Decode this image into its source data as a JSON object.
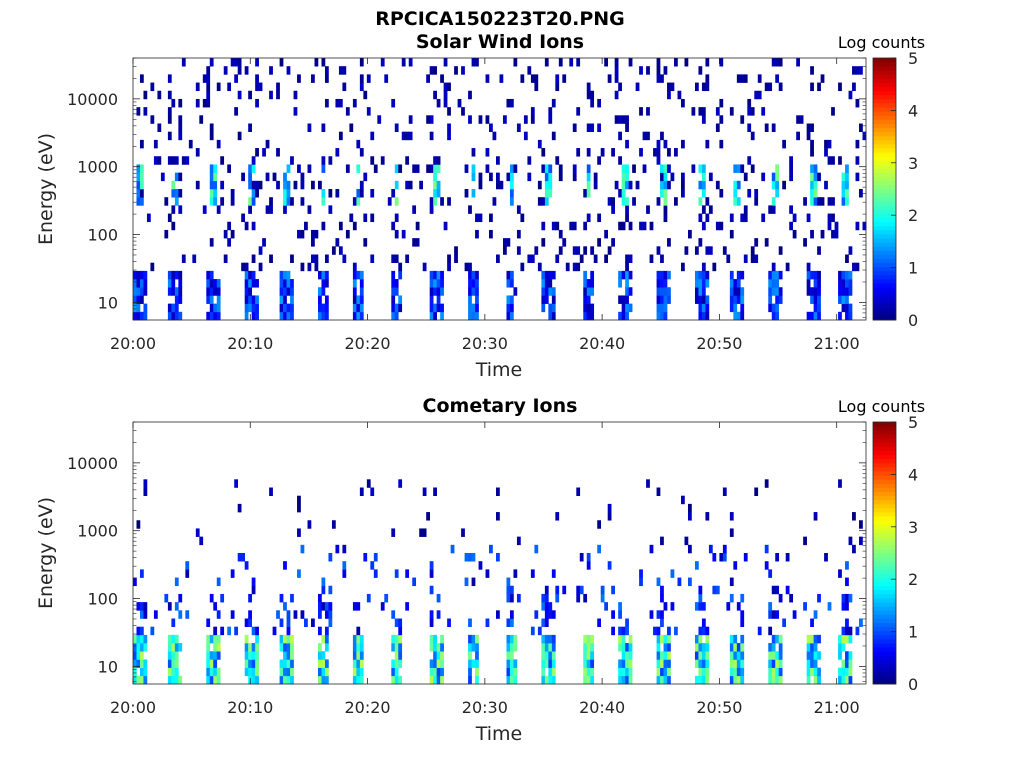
{
  "figure": {
    "file_title": "RPCICA150223T20.PNG",
    "background": "#ffffff"
  },
  "chart_data": [
    {
      "type": "heatmap",
      "title": "Solar Wind Ions",
      "xlabel": "Time",
      "ylabel": "Energy (eV)",
      "x_ticks": [
        "20:00",
        "20:10",
        "20:20",
        "20:30",
        "20:40",
        "20:50",
        "21:00"
      ],
      "x_tick_minutes": [
        0,
        10,
        20,
        30,
        40,
        50,
        60
      ],
      "xlim_minutes": [
        0,
        62.5
      ],
      "y_ticks": [
        "10",
        "100",
        "1000",
        "10000"
      ],
      "y_tick_values": [
        10,
        100,
        1000,
        10000
      ],
      "ylim": [
        5.5,
        40000
      ],
      "yscale": "log",
      "colorbar": {
        "title": "Log counts",
        "ticks": [
          "0",
          "1",
          "2",
          "3",
          "4",
          "5"
        ],
        "range": [
          0,
          5
        ],
        "colormap": "jet"
      },
      "pulse_minutes": [
        0.5,
        3.5,
        6.8,
        10.1,
        13.0,
        16.2,
        19.2,
        22.5,
        25.8,
        29.0,
        32.3,
        35.5,
        38.8,
        42.0,
        45.2,
        48.5,
        51.5,
        54.7,
        58.0,
        60.8
      ],
      "features": [
        {
          "name": "low-energy band",
          "energy_range_eV": [
            5.5,
            28
          ],
          "log_counts": [
            0.3,
            1.3
          ]
        },
        {
          "name": "solar wind beam",
          "energy_range_eV": [
            300,
            1000
          ],
          "log_counts": [
            1.0,
            2.5
          ]
        },
        {
          "name": "background",
          "energy_range_eV": [
            5.5,
            40000
          ],
          "log_counts": [
            0,
            0.4
          ]
        }
      ]
    },
    {
      "type": "heatmap",
      "title": "Cometary Ions",
      "xlabel": "Time",
      "ylabel": "Energy (eV)",
      "x_ticks": [
        "20:00",
        "20:10",
        "20:20",
        "20:30",
        "20:40",
        "20:50",
        "21:00"
      ],
      "x_tick_minutes": [
        0,
        10,
        20,
        30,
        40,
        50,
        60
      ],
      "xlim_minutes": [
        0,
        62.5
      ],
      "y_ticks": [
        "10",
        "100",
        "1000",
        "10000"
      ],
      "y_tick_values": [
        10,
        100,
        1000,
        10000
      ],
      "ylim": [
        5.5,
        40000
      ],
      "yscale": "log",
      "colorbar": {
        "title": "Log counts",
        "ticks": [
          "0",
          "1",
          "2",
          "3",
          "4",
          "5"
        ],
        "range": [
          0,
          5
        ],
        "colormap": "jet"
      },
      "pulse_minutes": [
        0.5,
        3.5,
        6.8,
        10.1,
        13.0,
        16.2,
        19.2,
        22.5,
        25.8,
        29.0,
        32.3,
        35.5,
        38.8,
        42.0,
        45.2,
        48.5,
        51.5,
        54.7,
        58.0,
        60.8
      ],
      "features": [
        {
          "name": "cometary ion band",
          "energy_range_eV": [
            5.5,
            30
          ],
          "log_counts": [
            1.0,
            2.8
          ]
        },
        {
          "name": "energy spread",
          "energy_range_eV": [
            30,
            600
          ],
          "log_counts": [
            0.2,
            1.2
          ]
        },
        {
          "name": "sparse counts",
          "energy_range_eV": [
            100,
            5000
          ],
          "log_counts": [
            0,
            0.4
          ]
        }
      ]
    }
  ]
}
